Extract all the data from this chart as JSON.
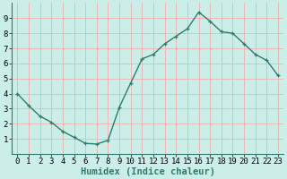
{
  "x": [
    0,
    1,
    2,
    3,
    4,
    5,
    6,
    7,
    8,
    9,
    10,
    11,
    12,
    13,
    14,
    15,
    16,
    17,
    18,
    19,
    20,
    21,
    22,
    23
  ],
  "y": [
    4.0,
    3.2,
    2.5,
    2.1,
    1.5,
    1.1,
    0.7,
    0.65,
    0.9,
    3.1,
    4.7,
    6.3,
    6.6,
    7.3,
    7.8,
    8.3,
    9.4,
    8.8,
    8.1,
    8.0,
    7.3,
    6.6,
    6.2,
    5.2
  ],
  "line_color": "#2d7d6e",
  "marker": "+",
  "marker_size": 3,
  "bg_color": "#cceee8",
  "grid_color": "#f0b0b0",
  "xlabel": "Humidex (Indice chaleur)",
  "xlim": [
    -0.5,
    23.5
  ],
  "ylim": [
    0,
    10
  ],
  "xticks": [
    0,
    1,
    2,
    3,
    4,
    5,
    6,
    7,
    8,
    9,
    10,
    11,
    12,
    13,
    14,
    15,
    16,
    17,
    18,
    19,
    20,
    21,
    22,
    23
  ],
  "yticks": [
    1,
    2,
    3,
    4,
    5,
    6,
    7,
    8,
    9
  ],
  "tick_fontsize": 6.5,
  "label_fontsize": 7.5
}
